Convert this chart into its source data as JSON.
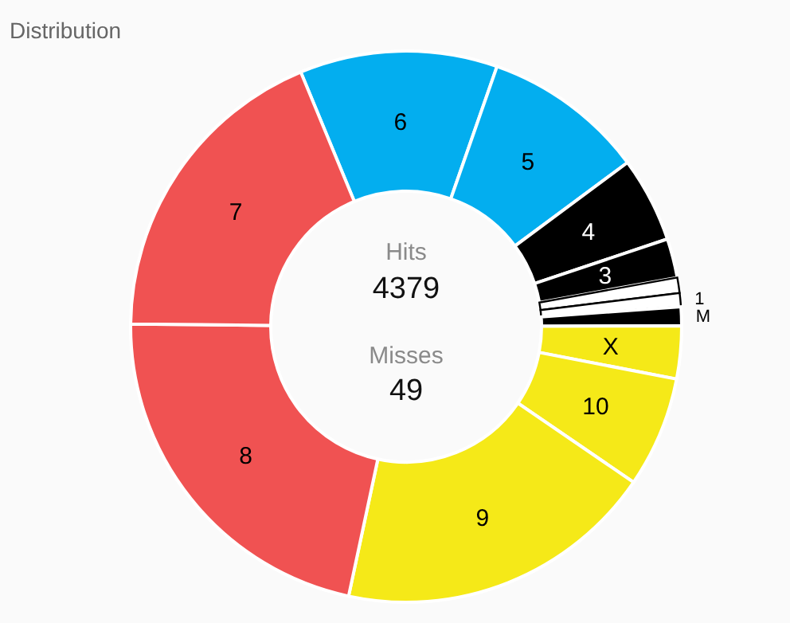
{
  "chart_data": {
    "type": "donut",
    "title": "Distribution",
    "categories": [
      "6",
      "5",
      "4",
      "3",
      null,
      "1",
      "M",
      "X",
      "10",
      "9",
      "8",
      "7"
    ],
    "values": [
      11.6,
      9.5,
      5.0,
      2.3,
      0.9,
      0.8,
      1.1,
      3.1,
      6.5,
      18.8,
      21.8,
      18.6
    ],
    "colors": [
      "#03aeef",
      "#03aeef",
      "#000000",
      "#000000",
      "#ffffff",
      "#ffffff",
      "#000000",
      "#f5e918",
      "#f5e918",
      "#f5e918",
      "#f05252",
      "#f05252"
    ],
    "annotations": [
      "Hits",
      "4379",
      "Misses",
      "49"
    ],
    "legend": false
  }
}
